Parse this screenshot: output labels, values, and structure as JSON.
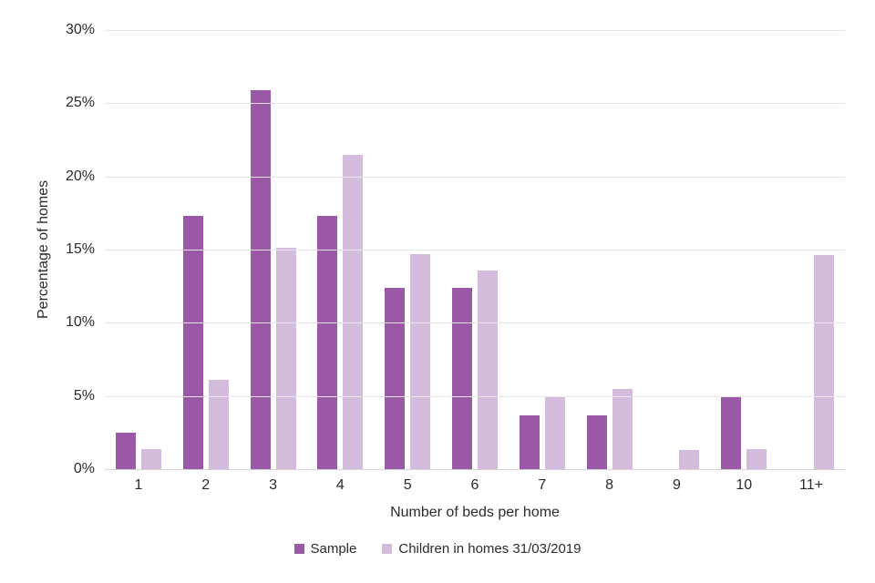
{
  "chart_data": {
    "type": "bar",
    "title": "",
    "categories": [
      "1",
      "2",
      "3",
      "4",
      "5",
      "6",
      "7",
      "8",
      "9",
      "10",
      "11+"
    ],
    "series": [
      {
        "name": "Sample",
        "color": "#9a59a6",
        "values": [
          2.5,
          17.3,
          25.9,
          17.3,
          12.4,
          12.4,
          3.7,
          3.7,
          0,
          5.0,
          0
        ]
      },
      {
        "name": "Children in homes 31/03/2019",
        "color": "#d4bcdc",
        "values": [
          1.4,
          6.1,
          15.1,
          21.5,
          14.7,
          13.6,
          4.9,
          5.5,
          1.3,
          1.4,
          14.6
        ]
      }
    ],
    "xlabel": "Number of beds per home",
    "ylabel": "Percentage of homes",
    "ylim": [
      0,
      30
    ],
    "ytick_step": 5,
    "ytick_labels": [
      "0%",
      "5%",
      "10%",
      "15%",
      "20%",
      "25%",
      "30%"
    ],
    "grid": true,
    "legend_position": "bottom",
    "colors": {
      "gridline": "#e4e4e4",
      "axis_line": "#d5d5d5",
      "text": "#2b2b2b",
      "background": "#ffffff"
    }
  }
}
